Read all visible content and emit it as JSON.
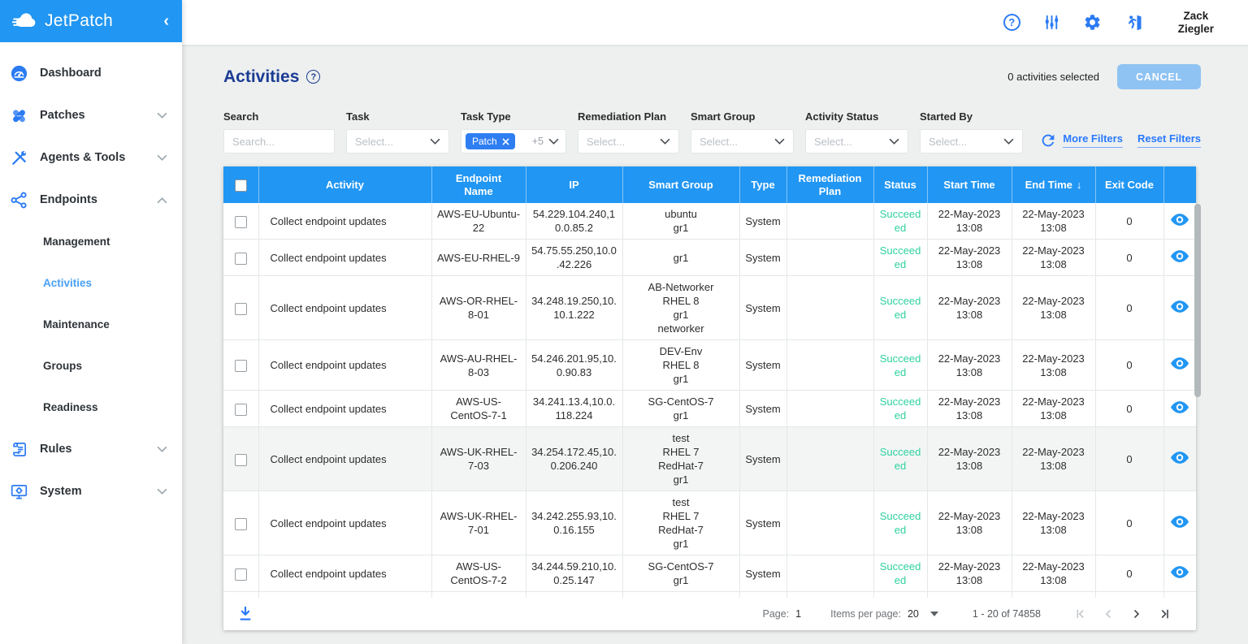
{
  "sidebar": {
    "logo_text": "JetPatch",
    "collapse_icon": "‹",
    "items": [
      {
        "label": "Dashboard",
        "icon": "dashboard-icon",
        "expandable": false
      },
      {
        "label": "Patches",
        "icon": "patches-icon",
        "expandable": true,
        "expanded": false
      },
      {
        "label": "Agents & Tools",
        "icon": "agents-tools-icon",
        "expandable": true,
        "expanded": false
      },
      {
        "label": "Endpoints",
        "icon": "endpoints-icon",
        "expandable": true,
        "expanded": true,
        "children": [
          {
            "label": "Management",
            "active": false
          },
          {
            "label": "Activities",
            "active": true
          },
          {
            "label": "Maintenance",
            "active": false
          },
          {
            "label": "Groups",
            "active": false
          },
          {
            "label": "Readiness",
            "active": false
          }
        ]
      },
      {
        "label": "Rules",
        "icon": "rules-icon",
        "expandable": true,
        "expanded": false
      },
      {
        "label": "System",
        "icon": "system-icon",
        "expandable": true,
        "expanded": false
      }
    ]
  },
  "topbar": {
    "help_glyph": "?",
    "user_name_line1": "Zack",
    "user_name_line2": "Ziegler"
  },
  "page": {
    "title": "Activities",
    "help_glyph": "?",
    "selected_summary": "0 activities selected",
    "cancel_label": "CANCEL",
    "more_filters": "More Filters",
    "reset_filters": "Reset Filters"
  },
  "filters": [
    {
      "label": "Search",
      "type": "input",
      "placeholder": "Search..."
    },
    {
      "label": "Task",
      "type": "select",
      "placeholder": "Select..."
    },
    {
      "label": "Task Type",
      "type": "chips",
      "chip": "Patch",
      "more": "+5"
    },
    {
      "label": "Remediation Plan",
      "type": "select",
      "placeholder": "Select..."
    },
    {
      "label": "Smart Group",
      "type": "select",
      "placeholder": "Select..."
    },
    {
      "label": "Activity Status",
      "type": "select",
      "placeholder": "Select..."
    },
    {
      "label": "Started By",
      "type": "select",
      "placeholder": "Select..."
    }
  ],
  "table": {
    "columns": [
      {
        "label": ""
      },
      {
        "label": "Activity"
      },
      {
        "label": "Endpoint Name"
      },
      {
        "label": "IP"
      },
      {
        "label": "Smart Group"
      },
      {
        "label": "Type"
      },
      {
        "label": "Remediation Plan"
      },
      {
        "label": "Status"
      },
      {
        "label": "Start Time"
      },
      {
        "label": "End Time",
        "sort": "desc"
      },
      {
        "label": "Exit Code"
      },
      {
        "label": ""
      }
    ],
    "rows": [
      {
        "activity": "Collect endpoint updates",
        "endpoint": "AWS-EU-Ubuntu-22",
        "ip": "54.229.104.240,10.0.85.2",
        "smart_group": [
          "ubuntu",
          "gr1"
        ],
        "type": "System",
        "remediation_plan": "",
        "status": "Succeeded",
        "start_time": [
          "22-May-2023",
          "13:08"
        ],
        "end_time": [
          "22-May-2023",
          "13:08"
        ],
        "exit_code": "0",
        "highlight": false
      },
      {
        "activity": "Collect endpoint updates",
        "endpoint": "AWS-EU-RHEL-9",
        "ip": "54.75.55.250,10.0.42.226",
        "smart_group": [
          "gr1"
        ],
        "type": "System",
        "remediation_plan": "",
        "status": "Succeeded",
        "start_time": [
          "22-May-2023",
          "13:08"
        ],
        "end_time": [
          "22-May-2023",
          "13:08"
        ],
        "exit_code": "0",
        "highlight": false
      },
      {
        "activity": "Collect endpoint updates",
        "endpoint": "AWS-OR-RHEL-8-01",
        "ip": "34.248.19.250,10.10.1.222",
        "smart_group": [
          "AB-Networker",
          "RHEL 8",
          "gr1",
          "networker"
        ],
        "type": "System",
        "remediation_plan": "",
        "status": "Succeeded",
        "start_time": [
          "22-May-2023",
          "13:08"
        ],
        "end_time": [
          "22-May-2023",
          "13:08"
        ],
        "exit_code": "0",
        "highlight": false
      },
      {
        "activity": "Collect endpoint updates",
        "endpoint": "AWS-AU-RHEL-8-03",
        "ip": "54.246.201.95,10.0.90.83",
        "smart_group": [
          "DEV-Env",
          "RHEL 8",
          "gr1"
        ],
        "type": "System",
        "remediation_plan": "",
        "status": "Succeeded",
        "start_time": [
          "22-May-2023",
          "13:08"
        ],
        "end_time": [
          "22-May-2023",
          "13:08"
        ],
        "exit_code": "0",
        "highlight": false
      },
      {
        "activity": "Collect endpoint updates",
        "endpoint": "AWS-US-CentOS-7-1",
        "ip": "34.241.13.4,10.0.118.224",
        "smart_group": [
          "SG-CentOS-7",
          "gr1"
        ],
        "type": "System",
        "remediation_plan": "",
        "status": "Succeeded",
        "start_time": [
          "22-May-2023",
          "13:08"
        ],
        "end_time": [
          "22-May-2023",
          "13:08"
        ],
        "exit_code": "0",
        "highlight": false
      },
      {
        "activity": "Collect endpoint updates",
        "endpoint": "AWS-UK-RHEL-7-03",
        "ip": "34.254.172.45,10.0.206.240",
        "smart_group": [
          "test",
          "RHEL 7",
          "RedHat-7",
          "gr1"
        ],
        "type": "System",
        "remediation_plan": "",
        "status": "Succeeded",
        "start_time": [
          "22-May-2023",
          "13:08"
        ],
        "end_time": [
          "22-May-2023",
          "13:08"
        ],
        "exit_code": "0",
        "highlight": true
      },
      {
        "activity": "Collect endpoint updates",
        "endpoint": "AWS-UK-RHEL-7-01",
        "ip": "34.242.255.93,10.0.16.155",
        "smart_group": [
          "test",
          "RHEL 7",
          "RedHat-7",
          "gr1"
        ],
        "type": "System",
        "remediation_plan": "",
        "status": "Succeeded",
        "start_time": [
          "22-May-2023",
          "13:08"
        ],
        "end_time": [
          "22-May-2023",
          "13:08"
        ],
        "exit_code": "0",
        "highlight": false
      },
      {
        "activity": "Collect endpoint updates",
        "endpoint": "AWS-US-CentOS-7-2",
        "ip": "34.244.59.210,10.0.25.147",
        "smart_group": [
          "SG-CentOS-7",
          "gr1"
        ],
        "type": "System",
        "remediation_plan": "",
        "status": "Succeeded",
        "start_time": [
          "22-May-2023",
          "13:08"
        ],
        "end_time": [
          "22-May-2023",
          "13:08"
        ],
        "exit_code": "0",
        "highlight": false
      }
    ]
  },
  "footer": {
    "page_label": "Page:",
    "page": "1",
    "items_per_page_label": "Items per page:",
    "items_per_page": "20",
    "range": "1 - 20 of 74858"
  },
  "colors": {
    "brand_blue": "#2196f3",
    "icon_blue": "#2b7bf3",
    "link_blue": "#2979ff",
    "title_navy": "#1b3c94",
    "status_green": "#2fd1a0",
    "page_bg": "#edf0ef"
  }
}
